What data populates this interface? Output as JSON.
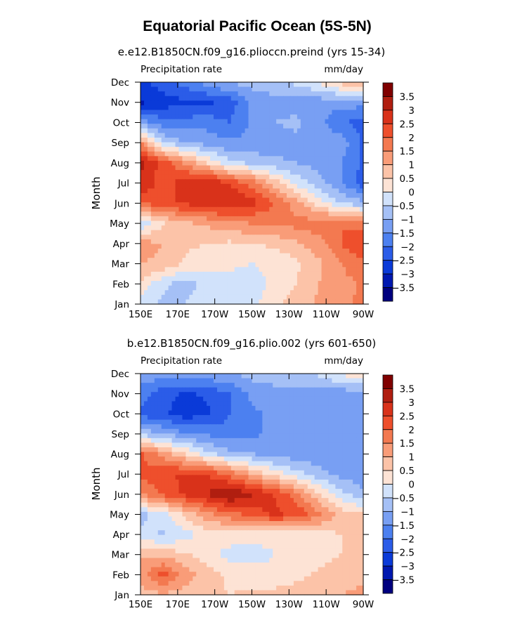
{
  "figure": {
    "title": "Equatorial Pacific Ocean (5S-5N)"
  },
  "chart_data": [
    {
      "type": "heatmap",
      "title": "e.e12.B1850CN.f09_g16.plioccn.preind (yrs 15-34)",
      "variable": "Precipitation rate",
      "units": "mm/day",
      "ylabel": "Month",
      "xlabel": "",
      "x_ticks": [
        "150E",
        "170E",
        "170W",
        "150W",
        "130W",
        "110W",
        "90W"
      ],
      "x_range": [
        "150E",
        "90W"
      ],
      "y_ticks": [
        "Jan",
        "Feb",
        "Mar",
        "Apr",
        "May",
        "Jun",
        "Jul",
        "Aug",
        "Sep",
        "Oct",
        "Nov",
        "Dec"
      ],
      "colorbar": {
        "levels": [
          -3.5,
          -3,
          -2.5,
          -2,
          -1.5,
          -1,
          -0.5,
          0,
          0.5,
          1,
          1.5,
          2,
          2.5,
          3,
          3.5
        ],
        "labels": [
          "3.5",
          "3",
          "2.5",
          "2",
          "1.5",
          "1",
          "0.5",
          "0",
          "−0.5",
          "−1",
          "−1.5",
          "−2",
          "−2.5",
          "−3",
          "−3.5"
        ]
      },
      "z": [
        [
          -0.3,
          -0.6,
          -0.5,
          -0.2,
          -0.1,
          -0.2,
          0.4,
          0.7,
          1.1,
          1.4,
          1.6
        ],
        [
          0.4,
          -0.4,
          -0.7,
          -0.3,
          -0.2,
          -0.2,
          0.1,
          0.5,
          1.0,
          1.3,
          1.6
        ],
        [
          1.0,
          0.9,
          0.4,
          0.2,
          0.1,
          0.0,
          0.1,
          0.4,
          0.9,
          1.5,
          1.9
        ],
        [
          1.2,
          1.0,
          0.6,
          0.5,
          0.4,
          0.5,
          0.6,
          0.9,
          1.3,
          2.0,
          2.6
        ],
        [
          -0.4,
          0.4,
          0.9,
          1.1,
          1.4,
          1.5,
          1.6,
          1.7,
          1.8,
          2.0,
          1.7
        ],
        [
          2.0,
          2.3,
          2.6,
          2.8,
          2.9,
          2.7,
          2.0,
          1.2,
          0.3,
          -0.5,
          -0.8
        ],
        [
          3.0,
          2.2,
          2.8,
          3.0,
          2.5,
          1.8,
          0.8,
          -0.2,
          -0.8,
          -1.5,
          -2.3
        ],
        [
          3.1,
          2.3,
          1.4,
          0.5,
          -0.4,
          -0.6,
          -0.9,
          -1.0,
          -1.2,
          -1.5,
          -2.1
        ],
        [
          1.5,
          -0.5,
          -1.0,
          -1.2,
          -1.4,
          -1.4,
          -1.3,
          -1.1,
          -1.1,
          -1.2,
          -2.1
        ],
        [
          -1.2,
          -1.8,
          -1.8,
          -1.7,
          -2.0,
          -1.4,
          -1.0,
          -0.9,
          -1.3,
          -2.0,
          -2.1
        ],
        [
          -3.1,
          -2.8,
          -2.6,
          -2.6,
          -2.3,
          -1.4,
          -1.2,
          -1.2,
          -1.3,
          -1.3,
          -1.3
        ],
        [
          -2.6,
          -2.2,
          -1.8,
          -1.2,
          -0.9,
          -0.8,
          -0.6,
          -0.4,
          0.1,
          0.7,
          1.1
        ]
      ]
    },
    {
      "type": "heatmap",
      "title": "b.e12.B1850CN.f09_g16.plio.002 (yrs 601-650)",
      "variable": "Precipitation rate",
      "units": "mm/day",
      "ylabel": "Month",
      "xlabel": "",
      "x_ticks": [
        "150E",
        "170E",
        "170W",
        "150W",
        "130W",
        "110W",
        "90W"
      ],
      "x_range": [
        "150E",
        "90W"
      ],
      "y_ticks": [
        "Jan",
        "Feb",
        "Mar",
        "Apr",
        "May",
        "Jun",
        "Jul",
        "Aug",
        "Sep",
        "Oct",
        "Nov",
        "Dec"
      ],
      "colorbar": {
        "levels": [
          -3.5,
          -3,
          -2.5,
          -2,
          -1.5,
          -1,
          -0.5,
          0,
          0.5,
          1,
          1.5,
          2,
          2.5,
          3,
          3.5
        ],
        "labels": [
          "3.5",
          "3",
          "2.5",
          "2",
          "1.5",
          "1",
          "0.5",
          "0",
          "−0.5",
          "−1",
          "−1.5",
          "−2",
          "−2.5",
          "−3",
          "−3.5"
        ]
      },
      "z": [
        [
          0.8,
          0.9,
          0.8,
          0.6,
          0.5,
          0.6,
          0.7,
          0.8,
          0.9,
          1.0,
          1.1
        ],
        [
          1.2,
          2.2,
          1.3,
          0.7,
          0.4,
          0.2,
          0.1,
          0.3,
          0.6,
          0.8,
          0.9
        ],
        [
          0.9,
          0.8,
          0.6,
          0.2,
          -0.2,
          -0.2,
          0.0,
          0.1,
          0.3,
          0.5,
          0.7
        ],
        [
          -0.3,
          -0.6,
          -0.2,
          0.2,
          0.3,
          0.2,
          0.1,
          0.1,
          0.3,
          0.5,
          0.8
        ],
        [
          -0.7,
          -0.2,
          0.6,
          1.4,
          1.8,
          2.2,
          2.6,
          2.4,
          1.6,
          0.8,
          0.5
        ],
        [
          1.5,
          2.1,
          2.6,
          3.0,
          3.6,
          3.1,
          2.5,
          1.7,
          0.6,
          -0.3,
          -0.8
        ],
        [
          2.1,
          2.4,
          2.6,
          2.5,
          1.8,
          1.0,
          0.3,
          -0.3,
          -0.8,
          -1.2,
          -1.4
        ],
        [
          2.1,
          1.3,
          0.5,
          -0.3,
          -0.8,
          -1.0,
          -1.2,
          -1.3,
          -1.4,
          -1.4,
          -1.5
        ],
        [
          -0.6,
          -1.0,
          -1.4,
          -1.6,
          -1.8,
          -1.6,
          -1.4,
          -1.4,
          -1.4,
          -1.5,
          -1.5
        ],
        [
          -2.2,
          -2.4,
          -2.8,
          -2.6,
          -2.0,
          -1.6,
          -1.4,
          -1.4,
          -1.4,
          -1.5,
          -1.5
        ],
        [
          -1.7,
          -2.3,
          -2.6,
          -2.4,
          -2.0,
          -1.4,
          -1.2,
          -1.2,
          -1.2,
          -1.3,
          -1.3
        ],
        [
          -1.2,
          -1.2,
          -1.2,
          -1.1,
          -1.0,
          -0.8,
          -0.7,
          -0.6,
          -0.4,
          0.1,
          0.5
        ]
      ]
    }
  ]
}
